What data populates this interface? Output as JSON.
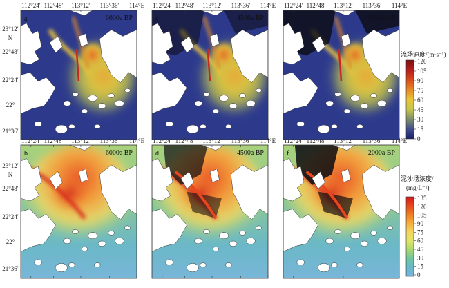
{
  "figure": {
    "top_lon_labels": [
      "112°24′",
      "112°48′",
      "113°12′",
      "113°36′",
      "114°E"
    ],
    "bottom_lon_labels": [
      "112°24′",
      "112°48′",
      "113°12′",
      "113°36′",
      "114°E"
    ],
    "lat_labels_top_row": [
      "23°12′",
      "N",
      "22°48′",
      "22°24′",
      "22°",
      "21°36′"
    ],
    "lat_labels_bottom_row": [
      "23°12′",
      "N",
      "22°48′",
      "22°24′",
      "22°",
      "21°36′"
    ]
  },
  "panels": [
    {
      "id": "a",
      "letter": "a",
      "period": "6000a BP",
      "variable": "velocity"
    },
    {
      "id": "c",
      "letter": "c",
      "period": "4500a BP",
      "variable": "velocity"
    },
    {
      "id": "e",
      "letter": "e",
      "period": "2000a BP",
      "variable": "velocity"
    },
    {
      "id": "b",
      "letter": "b",
      "period": "6000a BP",
      "variable": "concentration"
    },
    {
      "id": "d",
      "letter": "d",
      "period": "4500a BP",
      "variable": "concentration"
    },
    {
      "id": "f",
      "letter": "f",
      "period": "2000a BP",
      "variable": "concentration"
    }
  ],
  "colorbars": {
    "velocity": {
      "title_line1": "流场速度/(m·s⁻¹)",
      "title_line2": "",
      "ticks": [
        "120",
        "105",
        "90",
        "75",
        "60",
        "45",
        "30",
        "15",
        "0"
      ],
      "colors": [
        "#7a1010",
        "#b81e1e",
        "#d84a1a",
        "#e88a25",
        "#e9c437",
        "#c9c64a",
        "#7e8f6a",
        "#3f4d8c",
        "#1a1f6b"
      ]
    },
    "concentration": {
      "title_line1": "泥沙场浓度/",
      "title_line2": "(mg·L⁻¹)",
      "ticks": [
        "135",
        "120",
        "105",
        "90",
        "75",
        "60",
        "45",
        "30",
        "15",
        "0"
      ],
      "colors": [
        "#d7191c",
        "#e8461c",
        "#f07c22",
        "#f6ad3a",
        "#f4d55e",
        "#dfe566",
        "#a7d770",
        "#6fc6a0",
        "#66b9cc",
        "#74b4db"
      ]
    }
  }
}
